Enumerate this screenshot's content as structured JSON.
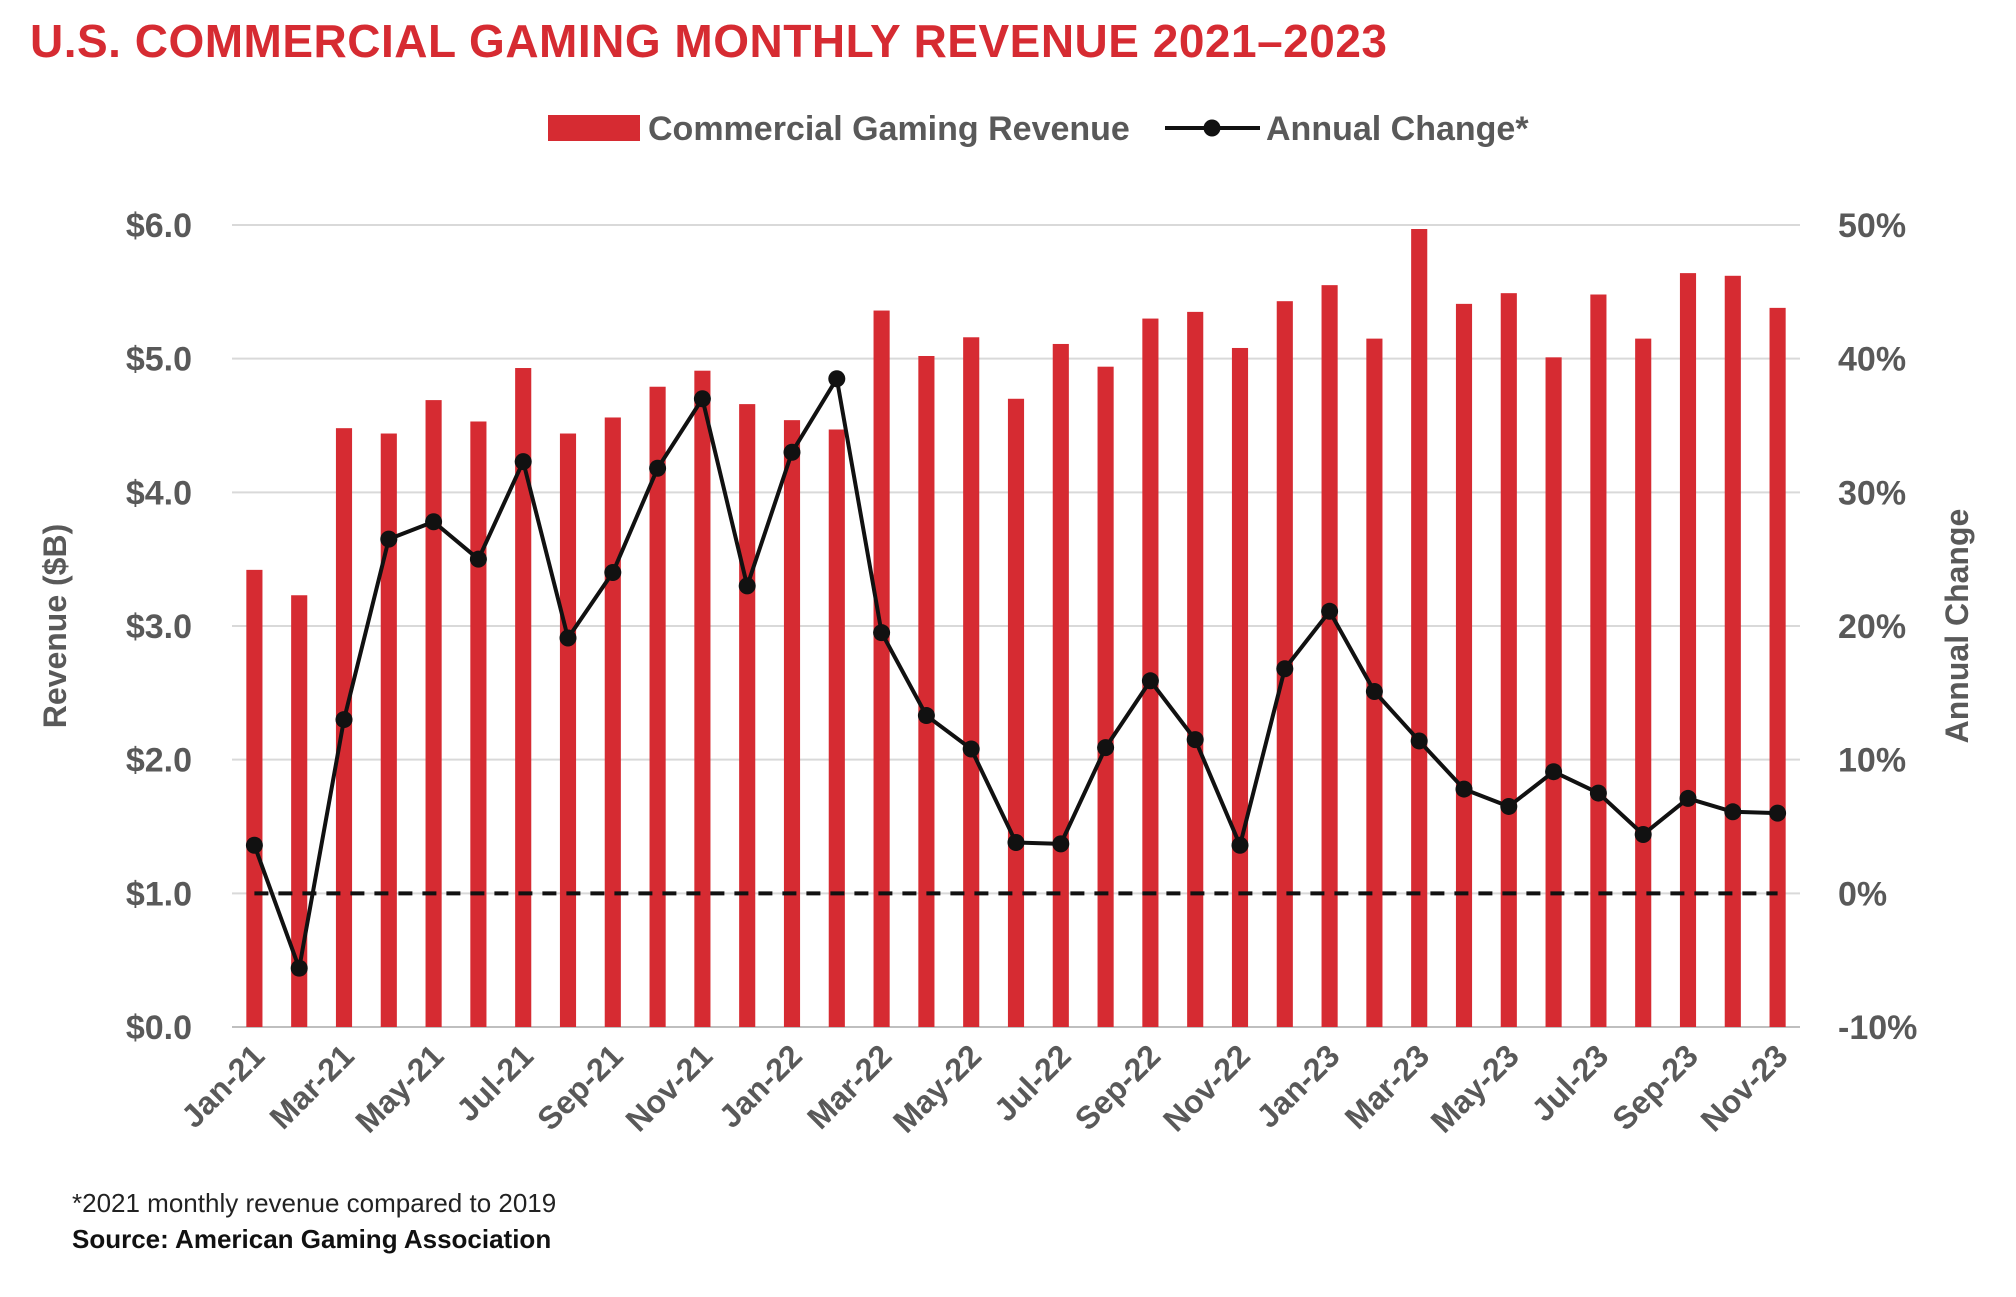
{
  "title": "U.S. COMMERCIAL GAMING MONTHLY REVENUE 2021–2023",
  "footnote": "*2021 monthly revenue compared to 2019",
  "source": "Source: American Gaming Association",
  "colors": {
    "bar": "#d62b32",
    "line": "#111111",
    "axis_text": "#595959",
    "grid": "#d9d9d9",
    "title": "#d62b32"
  },
  "chart_data": {
    "type": "bar",
    "categories": [
      "Jan-21",
      "Feb-21",
      "Mar-21",
      "Apr-21",
      "May-21",
      "Jun-21",
      "Jul-21",
      "Aug-21",
      "Sep-21",
      "Oct-21",
      "Nov-21",
      "Dec-21",
      "Jan-22",
      "Feb-22",
      "Mar-22",
      "Apr-22",
      "May-22",
      "Jun-22",
      "Jul-22",
      "Aug-22",
      "Sep-22",
      "Oct-22",
      "Nov-22",
      "Dec-22",
      "Jan-23",
      "Feb-23",
      "Mar-23",
      "Apr-23",
      "May-23",
      "Jun-23",
      "Jul-23",
      "Aug-23",
      "Sep-23",
      "Oct-23",
      "Nov-23"
    ],
    "tick_labels": [
      "Jan-21",
      "Mar-21",
      "May-21",
      "Jul-21",
      "Sep-21",
      "Nov-21",
      "Jan-22",
      "Mar-22",
      "May-22",
      "Jul-22",
      "Sep-22",
      "Nov-22",
      "Jan-23",
      "Mar-23",
      "May-23",
      "Jul-23",
      "Sep-23",
      "Nov-23"
    ],
    "series": [
      {
        "name": "Commercial Gaming Revenue",
        "type": "bar",
        "axis": "left",
        "values": [
          3.42,
          3.23,
          4.48,
          4.44,
          4.69,
          4.53,
          4.93,
          4.44,
          4.56,
          4.79,
          4.91,
          4.66,
          4.54,
          4.47,
          5.36,
          5.02,
          5.16,
          4.7,
          5.11,
          4.94,
          5.3,
          5.35,
          5.08,
          5.43,
          5.55,
          5.15,
          5.97,
          5.41,
          5.49,
          5.01,
          5.48,
          5.15,
          5.64,
          5.62,
          5.38
        ]
      },
      {
        "name": "Annual Change*",
        "type": "line",
        "axis": "right",
        "values": [
          3.6,
          -5.6,
          13.0,
          26.5,
          27.8,
          25.0,
          32.3,
          19.1,
          24.0,
          31.8,
          37.0,
          23.0,
          33.0,
          38.5,
          19.5,
          13.3,
          10.8,
          3.8,
          3.7,
          10.9,
          15.9,
          11.5,
          3.6,
          16.8,
          21.1,
          15.1,
          11.4,
          7.8,
          6.5,
          9.1,
          7.5,
          4.4,
          7.1,
          6.1,
          6.0
        ]
      }
    ],
    "reference_line": {
      "axis": "right",
      "value": 0,
      "style": "dashed"
    },
    "ylabel": "Revenue ($B)",
    "y2label": "Annual Change",
    "ylim": [
      0,
      6
    ],
    "y2lim": [
      -10,
      50
    ],
    "yticks": [
      "$0.0",
      "$1.0",
      "$2.0",
      "$3.0",
      "$4.0",
      "$5.0",
      "$6.0"
    ],
    "y2ticks": [
      "-10%",
      "0%",
      "10%",
      "20%",
      "30%",
      "40%",
      "50%"
    ],
    "grid": true,
    "legend_position": "top-center"
  }
}
